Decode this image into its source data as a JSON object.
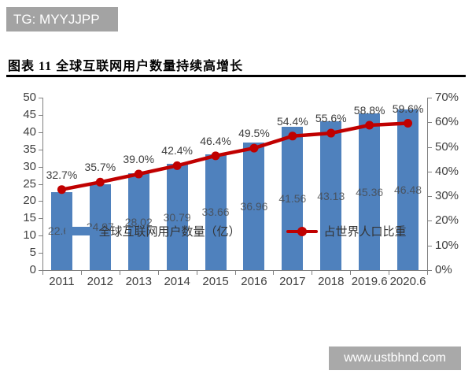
{
  "watermarks": {
    "top": "TG: MYYJJPP",
    "bottom": "www.ustbhnd.com"
  },
  "figure": {
    "title": "图表 11 全球互联网用户数量持续高增长"
  },
  "chart_data": {
    "type": "bar",
    "title": "图表 11 全球互联网用户数量持续高增长",
    "categories": [
      "2011",
      "2012",
      "2013",
      "2014",
      "2015",
      "2016",
      "2017",
      "2018",
      "2019.6",
      "2020.6"
    ],
    "series": [
      {
        "name": "全球互联网用户数量（亿）",
        "type": "bar",
        "axis": "left",
        "color": "#4f81bd",
        "values": [
          22.67,
          24.97,
          28.02,
          30.79,
          33.66,
          36.96,
          41.56,
          43.13,
          45.36,
          46.48
        ]
      },
      {
        "name": "占世界人口比重",
        "type": "line",
        "axis": "right",
        "color": "#c00000",
        "values": [
          32.7,
          35.7,
          39.0,
          42.4,
          46.4,
          49.5,
          54.4,
          55.6,
          58.8,
          59.6
        ],
        "unit": "%"
      }
    ],
    "left_axis": {
      "min": 0,
      "max": 50,
      "step": 5
    },
    "right_axis": {
      "min": 0,
      "max": 70,
      "step": 10,
      "suffix": "%"
    },
    "grid": false,
    "legend_position": "bottom",
    "colors": {
      "bar": "#4f81bd",
      "line": "#c00000",
      "axis_text": "#404040",
      "bar_label": "#464646",
      "watermark_bg": "#a6a6a6"
    }
  }
}
